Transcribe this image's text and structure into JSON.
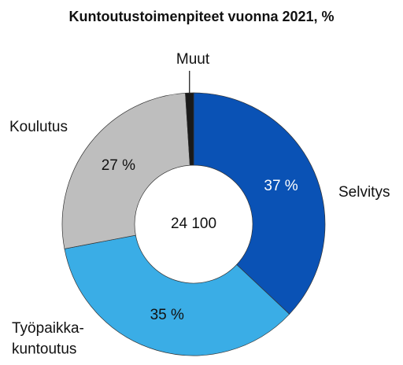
{
  "chart_data": {
    "type": "donut",
    "title": "Kuntoutustoimenpiteet vuonna 2021, %",
    "categories": [
      "Selvitys",
      "Työpaikka-\nkuntoutus",
      "Koulutus",
      "Muut"
    ],
    "values": [
      37,
      35,
      27,
      1
    ],
    "value_labels": [
      "37 %",
      "35 %",
      "27 %",
      null
    ],
    "colors": [
      "#0a52b5",
      "#3aade6",
      "#bebebe",
      "#1a1a1a"
    ],
    "center_label": "24 100"
  }
}
